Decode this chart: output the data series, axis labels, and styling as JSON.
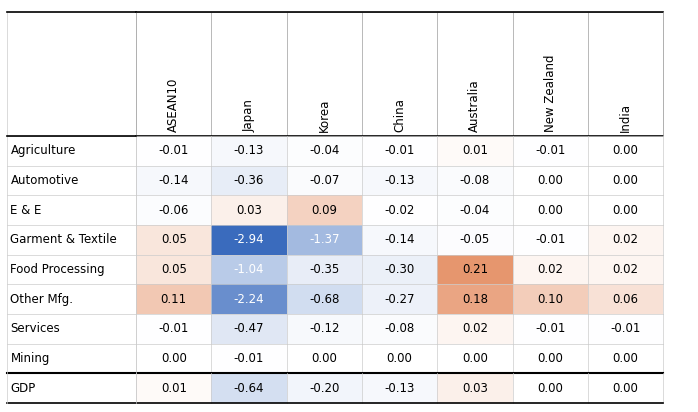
{
  "columns": [
    "ASEAN10",
    "Japan",
    "Korea",
    "China",
    "Australia",
    "New Zealand",
    "India"
  ],
  "rows": [
    "Agriculture",
    "Automotive",
    "E & E",
    "Garment & Textile",
    "Food Processing",
    "Other Mfg.",
    "Services",
    "Mining",
    "GDP"
  ],
  "values": [
    [
      -0.01,
      -0.13,
      -0.04,
      -0.01,
      0.01,
      -0.01,
      0.0
    ],
    [
      -0.14,
      -0.36,
      -0.07,
      -0.13,
      -0.08,
      0.0,
      0.0
    ],
    [
      -0.06,
      0.03,
      0.09,
      -0.02,
      -0.04,
      0.0,
      0.0
    ],
    [
      0.05,
      -2.94,
      -1.37,
      -0.14,
      -0.05,
      -0.01,
      0.02
    ],
    [
      0.05,
      -1.04,
      -0.35,
      -0.3,
      0.21,
      0.02,
      0.02
    ],
    [
      0.11,
      -2.24,
      -0.68,
      -0.27,
      0.18,
      0.1,
      0.06
    ],
    [
      -0.01,
      -0.47,
      -0.12,
      -0.08,
      0.02,
      -0.01,
      -0.01
    ],
    [
      0.0,
      -0.01,
      0.0,
      0.0,
      0.0,
      0.0,
      0.0
    ],
    [
      0.01,
      -0.64,
      -0.2,
      -0.13,
      0.03,
      0.0,
      0.0
    ]
  ],
  "gdp_separator_before_row": 8,
  "figsize": [
    6.98,
    4.12
  ],
  "dpi": 100,
  "min_val": -2.94,
  "max_val": 0.21,
  "blue_dark": [
    58,
    107,
    189
  ],
  "orange_dark": [
    230,
    150,
    110
  ]
}
